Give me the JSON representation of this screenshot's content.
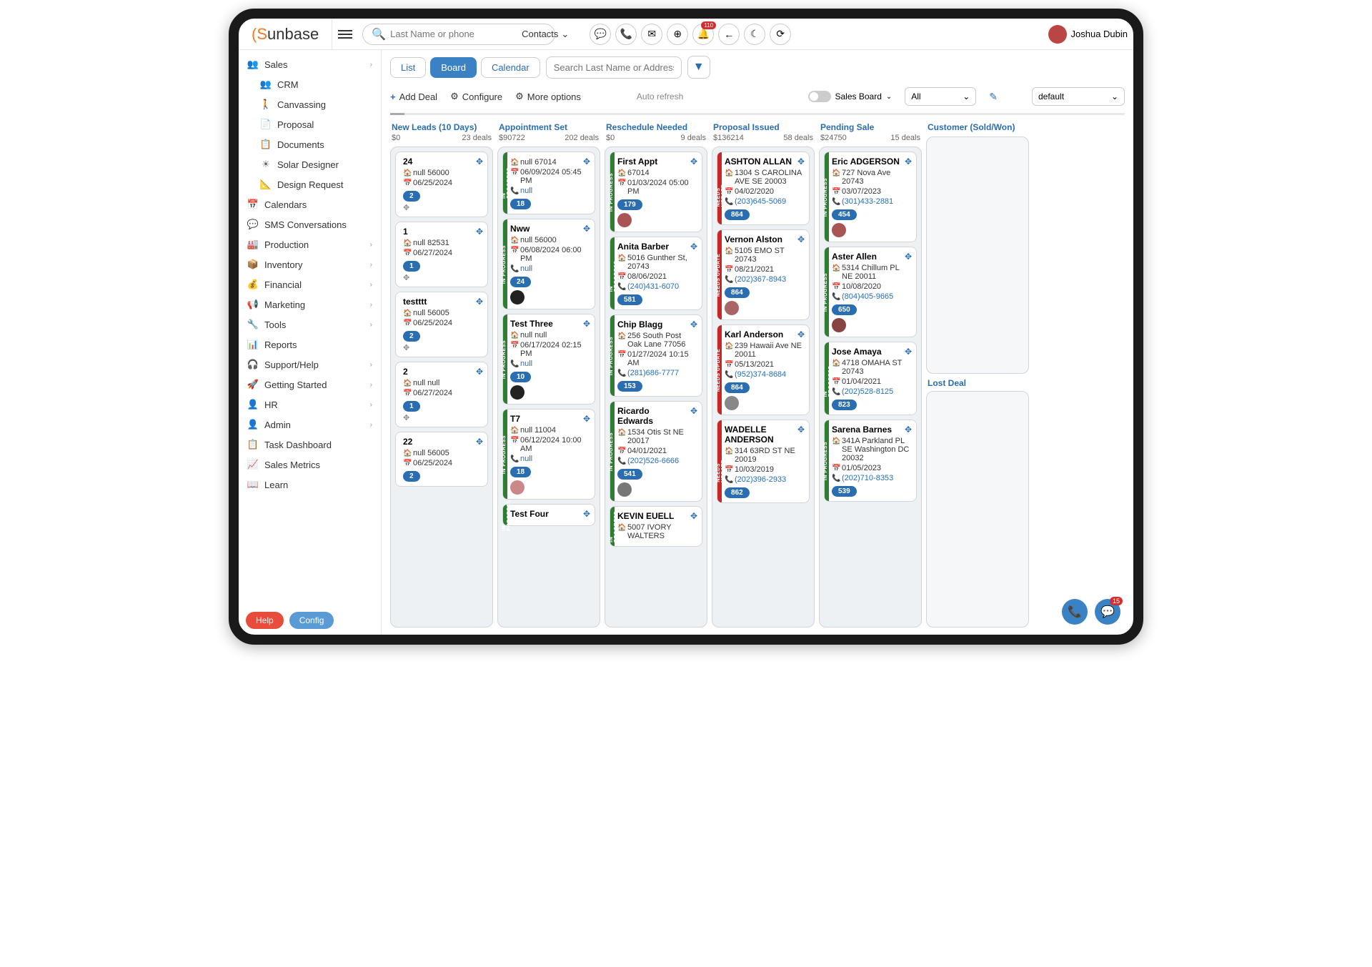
{
  "brand": "Sunbase",
  "search": {
    "placeholder": "Last Name or phone",
    "type_label": "Contacts"
  },
  "notif_badge": "110",
  "username": "Joshua Dubin",
  "sidebar": {
    "primary": "Sales",
    "sub": [
      "CRM",
      "Canvassing",
      "Proposal",
      "Documents",
      "Solar Designer",
      "Design Request"
    ],
    "items": [
      "Calendars",
      "SMS Conversations",
      "Production",
      "Inventory",
      "Financial",
      "Marketing",
      "Tools",
      "Reports",
      "Support/Help",
      "Getting Started",
      "HR",
      "Admin",
      "Task Dashboard",
      "Sales Metrics",
      "Learn"
    ],
    "expandable": [
      "Production",
      "Inventory",
      "Financial",
      "Marketing",
      "Tools",
      "Support/Help",
      "Getting Started",
      "HR",
      "Admin"
    ],
    "help": "Help",
    "config": "Config"
  },
  "view": {
    "tabs": [
      "List",
      "Board",
      "Calendar"
    ],
    "active": 1,
    "addr_placeholder": "Search Last Name or Address"
  },
  "actions": {
    "add": "Add Deal",
    "configure": "Configure",
    "more": "More options",
    "auto_refresh": "Auto refresh",
    "board_label": "Sales Board",
    "filter_all": "All",
    "preset": "default"
  },
  "columns": [
    {
      "title": "New Leads (10 Days)",
      "amount": "$0",
      "deals": "23 deals",
      "cards": [
        {
          "name": "24",
          "addr": "null 56000",
          "date": "06/25/2024",
          "badge": "2",
          "drag": true
        },
        {
          "name": "1",
          "addr": "null 82531",
          "date": "06/27/2024",
          "badge": "1",
          "drag": true
        },
        {
          "name": "testttt",
          "addr": "null 56005",
          "date": "06/25/2024",
          "badge": "2",
          "drag": true
        },
        {
          "name": "2",
          "addr": "null null",
          "date": "06/27/2024",
          "badge": "1",
          "drag": true
        },
        {
          "name": "22",
          "addr": "null 56005",
          "date": "06/25/2024",
          "badge": "2"
        }
      ]
    },
    {
      "title": "Appointment Set",
      "amount": "$90722",
      "deals": "202 deals",
      "cards": [
        {
          "stripe": "green",
          "vlabel": "IN PROGRESS",
          "addr": "null 67014",
          "date": "06/09/2024 05:45 PM",
          "phone": "null",
          "badge": "18"
        },
        {
          "stripe": "green",
          "vlabel": "IN PROGRESS",
          "name": "Nww",
          "addr": "null 56000",
          "date": "06/08/2024 06:00 PM",
          "phone": "null",
          "badge": "24",
          "avatar": "#222"
        },
        {
          "stripe": "green",
          "vlabel": "IN PROGRESS",
          "name": "Test Three",
          "addr": "null null",
          "date": "06/17/2024 02:15 PM",
          "phone": "null",
          "badge": "10",
          "avatar": "#222"
        },
        {
          "stripe": "green",
          "vlabel": "IN PROGRESS",
          "name": "T7",
          "addr": "null 11004",
          "date": "06/12/2024 10:00 AM",
          "phone": "null",
          "badge": "18",
          "avatar": "#c88"
        },
        {
          "stripe": "green",
          "vlabel": "IN PROGRESS",
          "name": "Test Four"
        }
      ]
    },
    {
      "title": "Reschedule Needed",
      "amount": "$0",
      "deals": "9 deals",
      "cards": [
        {
          "stripe": "green",
          "vlabel": "IN PROGRESS",
          "name": "First Appt",
          "addr": "67014",
          "date": "01/03/2024 05:00 PM",
          "badge": "179",
          "avatar": "#a55"
        },
        {
          "stripe": "green",
          "vlabel": "IN PROGRESS",
          "name": "Anita Barber",
          "addr": "5016 Gunther St, 20743",
          "date": "08/06/2021",
          "phone": "(240)431-6070",
          "badge": "581"
        },
        {
          "stripe": "green",
          "vlabel": "IN PROGRESS",
          "name": "Chip Blagg",
          "addr": "256 South Post Oak Lane 77056",
          "date": "01/27/2024 10:15 AM",
          "phone": "(281)686-7777",
          "badge": "153"
        },
        {
          "stripe": "green",
          "vlabel": "IN PROGRESS",
          "name": "Ricardo Edwards",
          "addr": "1534 Otis St NE 20017",
          "date": "04/01/2021",
          "phone": "(202)526-6666",
          "badge": "541",
          "avatar": "#777"
        },
        {
          "stripe": "green",
          "vlabel": "IN PROGRESS",
          "name": "KEVIN EUELL",
          "addr": "5007 IVORY WALTERS"
        }
      ]
    },
    {
      "title": "Proposal Issued",
      "amount": "$136214",
      "deals": "58 deals",
      "cards": [
        {
          "stripe": "red",
          "vlabel": "NEEDS UPDATE",
          "name": "ASHTON ALLAN",
          "addr": "1304 S CAROLINA AVE SE 20003",
          "date": "04/02/2020",
          "phone": "(203)645-5069",
          "badge": "864"
        },
        {
          "stripe": "red",
          "vlabel": "NEEDS UPDATE",
          "name": "Vernon Alston",
          "addr": "5105 EMO ST 20743",
          "date": "08/21/2021",
          "phone": "(202)367-8943",
          "badge": "864",
          "avatar": "#a66"
        },
        {
          "stripe": "red",
          "vlabel": "NEEDS UPDATE",
          "name": "Karl Anderson",
          "addr": "239 Hawaii Ave NE 20011",
          "date": "05/13/2021",
          "phone": "(952)374-8684",
          "badge": "864",
          "avatar": "#888"
        },
        {
          "stripe": "red",
          "vlabel": "NEEDS UPDATE",
          "name": "WADELLE ANDERSON",
          "addr": "314 63RD ST NE 20019",
          "date": "10/03/2019",
          "phone": "(202)396-2933",
          "badge": "862"
        }
      ]
    },
    {
      "title": "Pending Sale",
      "amount": "$24750",
      "deals": "15 deals",
      "cards": [
        {
          "stripe": "green",
          "vlabel": "IN PROGRESS",
          "name": "Eric ADGERSON",
          "addr": "727 Nova Ave 20743",
          "date": "03/07/2023",
          "phone": "(301)433-2881",
          "badge": "454",
          "avatar": "#a55"
        },
        {
          "stripe": "green",
          "vlabel": "IN PROGRESS",
          "name": "Aster Allen",
          "addr": "5314 Chillum PL NE 20011",
          "date": "10/08/2020",
          "phone": "(804)405-9665",
          "badge": "650",
          "avatar": "#844"
        },
        {
          "stripe": "green",
          "vlabel": "IN PROGRESS",
          "name": "Jose Amaya",
          "addr": "4718 OMAHA ST 20743",
          "date": "01/04/2021",
          "phone": "(202)528-8125",
          "badge": "823"
        },
        {
          "stripe": "green",
          "vlabel": "IN PROGRESS",
          "name": "Sarena Barnes",
          "addr": "341A Parkland PL SE Washington DC 20032",
          "date": "01/05/2023",
          "phone": "(202)710-8353",
          "badge": "539"
        }
      ]
    },
    {
      "title": "Customer (Sold/Won)",
      "split": true,
      "lost_label": "Lost Deal",
      "cards": []
    }
  ],
  "float_badge": "15"
}
